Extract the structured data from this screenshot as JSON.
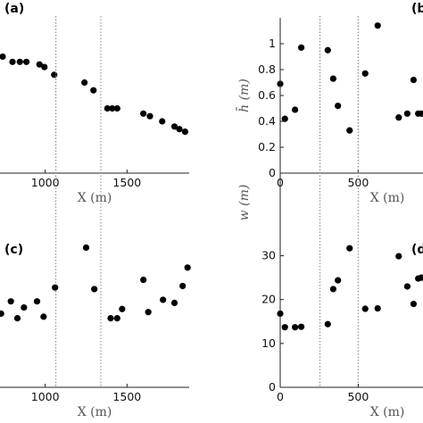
{
  "chart_data": [
    {
      "panel": "(a)",
      "type": "scatter",
      "xlabel": "X (m)",
      "ylabel": "",
      "xlim": [
        680,
        1880
      ],
      "ylim": [
        0.05,
        0.65
      ],
      "xticks": [
        1000,
        1500
      ],
      "yticks": [],
      "vlines": [
        1065,
        1340
      ],
      "points": [
        {
          "x": 740,
          "y": 0.5
        },
        {
          "x": 800,
          "y": 0.48
        },
        {
          "x": 845,
          "y": 0.48
        },
        {
          "x": 885,
          "y": 0.48
        },
        {
          "x": 965,
          "y": 0.47
        },
        {
          "x": 995,
          "y": 0.46
        },
        {
          "x": 1055,
          "y": 0.43
        },
        {
          "x": 1240,
          "y": 0.4
        },
        {
          "x": 1295,
          "y": 0.37
        },
        {
          "x": 1380,
          "y": 0.3
        },
        {
          "x": 1410,
          "y": 0.3
        },
        {
          "x": 1440,
          "y": 0.3
        },
        {
          "x": 1600,
          "y": 0.28
        },
        {
          "x": 1640,
          "y": 0.27
        },
        {
          "x": 1715,
          "y": 0.25
        },
        {
          "x": 1790,
          "y": 0.23
        },
        {
          "x": 1820,
          "y": 0.22
        },
        {
          "x": 1855,
          "y": 0.21
        }
      ]
    },
    {
      "panel": "(b)",
      "type": "scatter",
      "xlabel": "X (m)",
      "ylabel": "h̄ (m)",
      "xlim": [
        0,
        950
      ],
      "ylim": [
        0,
        1.2
      ],
      "xticks": [
        0,
        500
      ],
      "yticks": [
        0,
        0.2,
        0.4,
        0.6,
        0.8,
        1
      ],
      "ytick_labels": [
        "0",
        "0.2",
        "0.4",
        "0.6",
        "0.8",
        "1"
      ],
      "vlines": [
        255,
        500
      ],
      "points": [
        {
          "x": 0,
          "y": 0.69
        },
        {
          "x": 30,
          "y": 0.42
        },
        {
          "x": 95,
          "y": 0.49
        },
        {
          "x": 135,
          "y": 0.97
        },
        {
          "x": 305,
          "y": 0.95
        },
        {
          "x": 340,
          "y": 0.73
        },
        {
          "x": 370,
          "y": 0.52
        },
        {
          "x": 445,
          "y": 0.33
        },
        {
          "x": 545,
          "y": 0.77
        },
        {
          "x": 625,
          "y": 1.14
        },
        {
          "x": 760,
          "y": 0.43
        },
        {
          "x": 815,
          "y": 0.46
        },
        {
          "x": 855,
          "y": 0.72
        },
        {
          "x": 885,
          "y": 0.46
        },
        {
          "x": 905,
          "y": 0.46
        }
      ]
    },
    {
      "panel": "(c)",
      "type": "scatter",
      "xlabel": "X (m)",
      "ylabel": "",
      "xlim": [
        680,
        1880
      ],
      "ylim": [
        0,
        1
      ],
      "xticks": [
        1000,
        1500
      ],
      "yticks": [],
      "vlines": [
        1065,
        1340
      ],
      "points": [
        {
          "x": 730,
          "y": 0.48
        },
        {
          "x": 790,
          "y": 0.56
        },
        {
          "x": 830,
          "y": 0.45
        },
        {
          "x": 870,
          "y": 0.52
        },
        {
          "x": 950,
          "y": 0.56
        },
        {
          "x": 990,
          "y": 0.46
        },
        {
          "x": 1060,
          "y": 0.65
        },
        {
          "x": 1250,
          "y": 0.91
        },
        {
          "x": 1300,
          "y": 0.64
        },
        {
          "x": 1400,
          "y": 0.45
        },
        {
          "x": 1440,
          "y": 0.45
        },
        {
          "x": 1470,
          "y": 0.51
        },
        {
          "x": 1600,
          "y": 0.7
        },
        {
          "x": 1630,
          "y": 0.49
        },
        {
          "x": 1720,
          "y": 0.57
        },
        {
          "x": 1790,
          "y": 0.55
        },
        {
          "x": 1840,
          "y": 0.66
        },
        {
          "x": 1870,
          "y": 0.78
        }
      ]
    },
    {
      "panel": "(d)",
      "type": "scatter",
      "xlabel": "X (m)",
      "ylabel": "w (m)",
      "xlim": [
        0,
        950
      ],
      "ylim": [
        0,
        35
      ],
      "xticks": [
        0,
        500
      ],
      "yticks": [
        0,
        10,
        20,
        30
      ],
      "ytick_labels": [
        "0",
        "10",
        "20",
        "30"
      ],
      "vlines": [
        255,
        500
      ],
      "points": [
        {
          "x": 0,
          "y": 16.8
        },
        {
          "x": 30,
          "y": 13.7
        },
        {
          "x": 95,
          "y": 13.7
        },
        {
          "x": 135,
          "y": 13.8
        },
        {
          "x": 305,
          "y": 14.4
        },
        {
          "x": 340,
          "y": 22.4
        },
        {
          "x": 370,
          "y": 24.4
        },
        {
          "x": 445,
          "y": 31.7
        },
        {
          "x": 545,
          "y": 17.9
        },
        {
          "x": 625,
          "y": 18.0
        },
        {
          "x": 760,
          "y": 29.9
        },
        {
          "x": 815,
          "y": 23.0
        },
        {
          "x": 855,
          "y": 19.0
        },
        {
          "x": 885,
          "y": 24.8
        },
        {
          "x": 905,
          "y": 25.0
        }
      ]
    }
  ]
}
